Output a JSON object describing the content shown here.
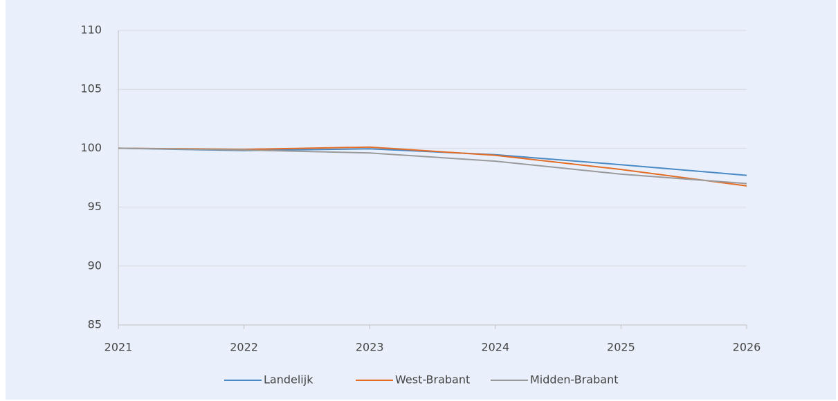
{
  "chart_data": {
    "type": "line",
    "x": [
      2021,
      2022,
      2023,
      2024,
      2025,
      2026
    ],
    "xlim": [
      2021,
      2026
    ],
    "xticks": [
      2021,
      2022,
      2023,
      2024,
      2025,
      2026
    ],
    "ylim": [
      85,
      110
    ],
    "yticks": [
      85,
      90,
      95,
      100,
      105,
      110
    ],
    "grid": true,
    "legend": "bottom",
    "series": [
      {
        "name": "Landelijk",
        "color": "#4a8ac4",
        "values": [
          100,
          99.8,
          99.95,
          99.45,
          98.6,
          97.7
        ]
      },
      {
        "name": "West-Brabant",
        "color": "#e46c25",
        "values": [
          100,
          99.9,
          100.1,
          99.4,
          98.2,
          96.8
        ]
      },
      {
        "name": "Midden-Brabant",
        "color": "#9a9a9a",
        "values": [
          100,
          99.85,
          99.6,
          98.9,
          97.8,
          97.0
        ]
      }
    ]
  }
}
